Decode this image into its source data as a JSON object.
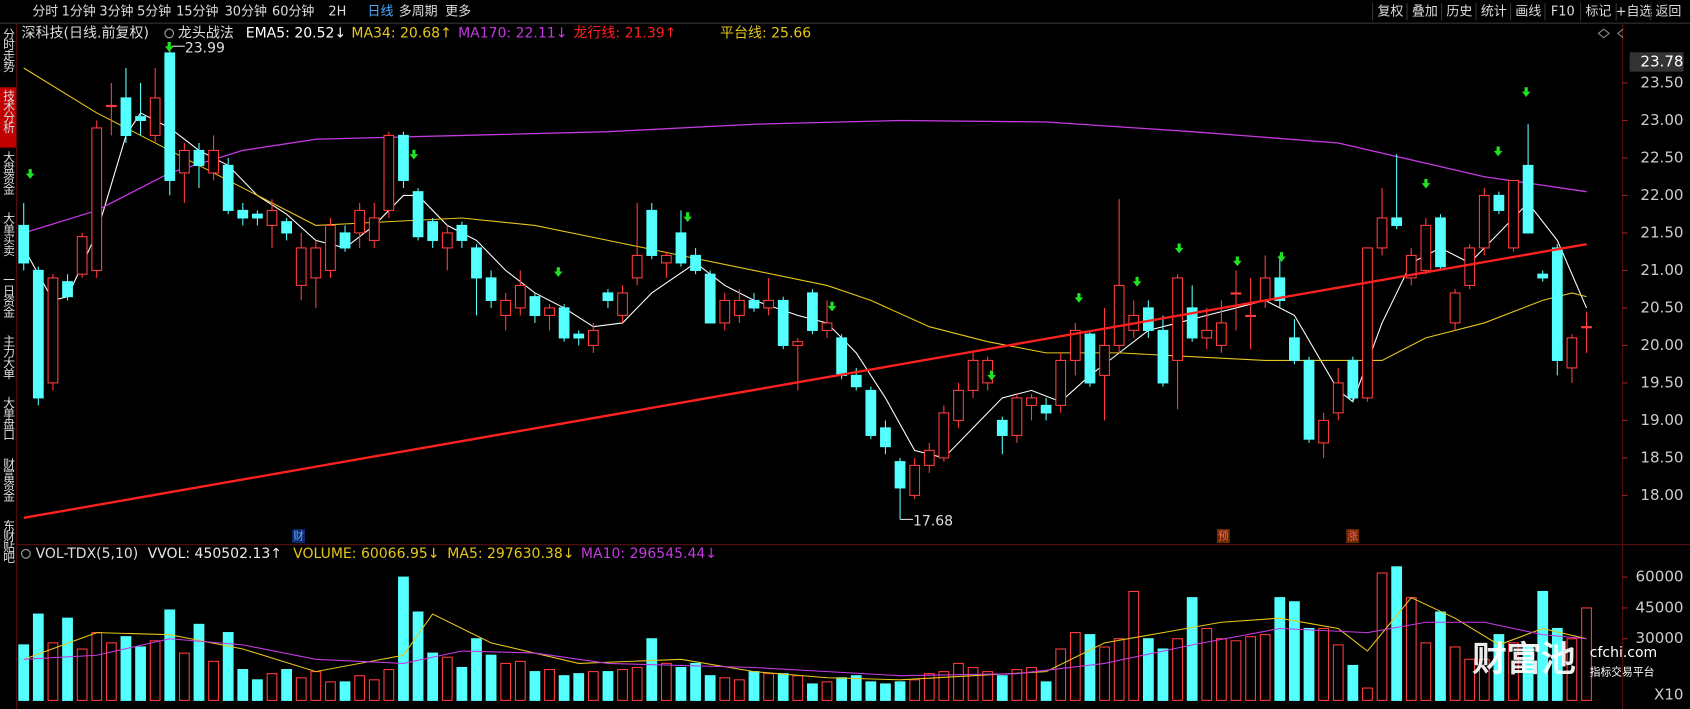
{
  "toolbar": {
    "left": [
      {
        "label": "分时"
      },
      {
        "label": "1分钟"
      },
      {
        "label": "3分钟"
      },
      {
        "label": "5分钟"
      },
      {
        "label": "15分钟"
      },
      {
        "label": "30分钟"
      },
      {
        "label": "60分钟"
      },
      {
        "label": "2H"
      },
      {
        "label": "日线",
        "active": true
      },
      {
        "label": "多周期"
      },
      {
        "label": "更多"
      }
    ],
    "right": [
      {
        "label": "复权"
      },
      {
        "label": "叠加"
      },
      {
        "label": "历史"
      },
      {
        "label": "统计"
      },
      {
        "label": "画线"
      },
      {
        "label": "F10"
      },
      {
        "label": "标记"
      },
      {
        "label": "+自选"
      },
      {
        "label": "返回"
      }
    ]
  },
  "sidebar": [
    {
      "label": "分时走势"
    },
    {
      "label": "技术分析",
      "active": true
    },
    {
      "label": "大盘资金"
    },
    {
      "label": "大单买卖"
    },
    {
      "label": "一日资金"
    },
    {
      "label": "主力大单"
    },
    {
      "label": "大单盘口"
    },
    {
      "label": "财富资金"
    },
    {
      "label": "东财贴吧"
    }
  ],
  "watermark": {
    "logo": "财富池",
    "site": "cfchi.com",
    "tagline": "指标交易平台"
  },
  "chart_data": [
    {
      "type": "candlestick",
      "title": "深科技(日线.前复权)",
      "indicator": "龙头战法",
      "up_color": "#ff3c3c",
      "down_color": "#54ffff",
      "ylim": [
        17.35,
        24.29
      ],
      "yticks": [
        {
          "value": 18,
          "label": "18.00"
        },
        {
          "value": 18.5,
          "label": "18.50"
        },
        {
          "value": 19,
          "label": "19.00"
        },
        {
          "value": 19.5,
          "label": "19.50"
        },
        {
          "value": 20,
          "label": "20.00"
        },
        {
          "value": 20.5,
          "label": "20.50"
        },
        {
          "value": 21,
          "label": "21.00"
        },
        {
          "value": 21.5,
          "label": "21.50"
        },
        {
          "value": 22,
          "label": "22.00"
        },
        {
          "value": 22.5,
          "label": "22.50"
        },
        {
          "value": 23,
          "label": "23.00"
        },
        {
          "value": 23.5,
          "label": "23.50"
        }
      ],
      "axis_top_label": {
        "value": 23.78,
        "label": "23.78"
      },
      "high_label": 23.99,
      "low_label": 17.68,
      "event_markers": [
        "财",
        "预",
        "涨"
      ],
      "ohlc": [
        [
          21.6,
          21.9,
          21.0,
          21.1
        ],
        [
          21.0,
          21.05,
          19.2,
          19.3
        ],
        [
          19.5,
          20.95,
          19.4,
          20.9
        ],
        [
          20.85,
          20.95,
          20.6,
          20.65
        ],
        [
          20.95,
          21.5,
          20.9,
          21.45
        ],
        [
          21.0,
          23.0,
          20.9,
          22.9
        ],
        [
          23.2,
          23.5,
          22.8,
          23.2
        ],
        [
          23.3,
          23.7,
          22.7,
          22.8
        ],
        [
          23.05,
          23.5,
          22.8,
          23.0
        ],
        [
          22.8,
          23.7,
          22.7,
          23.3
        ],
        [
          23.9,
          23.99,
          22.0,
          22.2
        ],
        [
          22.3,
          22.7,
          21.9,
          22.6
        ],
        [
          22.6,
          22.7,
          22.1,
          22.4
        ],
        [
          22.3,
          22.8,
          22.2,
          22.6
        ],
        [
          22.4,
          22.5,
          21.75,
          21.8
        ],
        [
          21.8,
          21.9,
          21.6,
          21.7
        ],
        [
          21.75,
          21.8,
          21.6,
          21.7
        ],
        [
          21.6,
          21.95,
          21.3,
          21.8
        ],
        [
          21.65,
          21.7,
          21.4,
          21.5
        ],
        [
          20.8,
          21.5,
          20.6,
          21.3
        ],
        [
          20.9,
          21.4,
          20.5,
          21.3
        ],
        [
          21.0,
          21.7,
          20.9,
          21.6
        ],
        [
          21.5,
          21.6,
          21.25,
          21.3
        ],
        [
          21.5,
          21.9,
          21.3,
          21.8
        ],
        [
          21.4,
          21.9,
          21.3,
          21.7
        ],
        [
          21.8,
          22.85,
          21.7,
          22.8
        ],
        [
          22.8,
          22.85,
          22.1,
          22.2
        ],
        [
          22.05,
          22.1,
          21.4,
          21.45
        ],
        [
          21.65,
          21.7,
          21.3,
          21.4
        ],
        [
          21.3,
          21.6,
          21.0,
          21.5
        ],
        [
          21.6,
          21.65,
          21.3,
          21.4
        ],
        [
          21.3,
          21.35,
          20.4,
          20.9
        ],
        [
          20.9,
          21.0,
          20.5,
          20.6
        ],
        [
          20.4,
          20.7,
          20.2,
          20.6
        ],
        [
          20.5,
          21.0,
          20.4,
          20.8
        ],
        [
          20.65,
          20.7,
          20.3,
          20.4
        ],
        [
          20.4,
          20.55,
          20.2,
          20.5
        ],
        [
          20.5,
          20.55,
          20.05,
          20.1
        ],
        [
          20.15,
          20.2,
          20.0,
          20.1
        ],
        [
          20.0,
          20.3,
          19.9,
          20.2
        ],
        [
          20.7,
          20.75,
          20.5,
          20.6
        ],
        [
          20.4,
          20.8,
          20.3,
          20.7
        ],
        [
          20.9,
          21.9,
          20.8,
          21.2
        ],
        [
          21.8,
          21.9,
          21.15,
          21.2
        ],
        [
          21.1,
          21.25,
          20.9,
          21.2
        ],
        [
          21.5,
          21.8,
          21.05,
          21.1
        ],
        [
          21.2,
          21.3,
          20.95,
          21.0
        ],
        [
          20.95,
          21.0,
          20.3,
          20.3
        ],
        [
          20.3,
          20.7,
          20.2,
          20.6
        ],
        [
          20.4,
          20.75,
          20.3,
          20.6
        ],
        [
          20.6,
          20.7,
          20.45,
          20.5
        ],
        [
          20.5,
          20.9,
          20.4,
          20.6
        ],
        [
          20.6,
          20.65,
          19.95,
          20.0
        ],
        [
          20.0,
          20.1,
          19.4,
          20.05
        ],
        [
          20.7,
          20.75,
          20.15,
          20.2
        ],
        [
          20.2,
          20.6,
          20.1,
          20.3
        ],
        [
          20.1,
          20.15,
          19.55,
          19.6
        ],
        [
          19.6,
          19.7,
          19.4,
          19.45
        ],
        [
          19.4,
          19.45,
          18.75,
          18.8
        ],
        [
          18.9,
          19.0,
          18.55,
          18.65
        ],
        [
          18.45,
          18.5,
          17.68,
          18.1
        ],
        [
          18.0,
          18.5,
          17.95,
          18.4
        ],
        [
          18.4,
          18.7,
          18.3,
          18.6
        ],
        [
          18.5,
          19.2,
          18.45,
          19.1
        ],
        [
          19.0,
          19.5,
          18.9,
          19.4
        ],
        [
          19.4,
          19.9,
          19.3,
          19.8
        ],
        [
          19.5,
          19.85,
          19.4,
          19.8
        ],
        [
          19.0,
          19.05,
          18.55,
          18.8
        ],
        [
          18.8,
          19.35,
          18.7,
          19.3
        ],
        [
          19.2,
          19.35,
          19.0,
          19.3
        ],
        [
          19.2,
          19.3,
          19.0,
          19.1
        ],
        [
          19.2,
          19.9,
          19.1,
          19.8
        ],
        [
          19.8,
          20.3,
          19.6,
          20.2
        ],
        [
          20.15,
          20.2,
          19.45,
          19.5
        ],
        [
          19.6,
          20.5,
          19.0,
          20.0
        ],
        [
          20.0,
          21.95,
          19.9,
          20.8
        ],
        [
          20.2,
          20.6,
          20.1,
          20.4
        ],
        [
          20.5,
          20.6,
          20.1,
          20.2
        ],
        [
          20.2,
          20.4,
          19.45,
          19.5
        ],
        [
          19.8,
          20.95,
          19.15,
          20.9
        ],
        [
          20.5,
          20.8,
          20.05,
          20.1
        ],
        [
          20.1,
          20.5,
          19.95,
          20.2
        ],
        [
          20.0,
          20.6,
          19.9,
          20.3
        ],
        [
          20.7,
          21.0,
          20.2,
          20.7
        ],
        [
          20.4,
          20.9,
          19.95,
          20.4
        ],
        [
          20.6,
          21.2,
          20.5,
          20.9
        ],
        [
          20.9,
          21.2,
          20.5,
          20.6
        ],
        [
          20.1,
          20.35,
          19.75,
          19.8
        ],
        [
          19.8,
          19.85,
          18.7,
          18.75
        ],
        [
          18.7,
          19.1,
          18.5,
          19.0
        ],
        [
          19.1,
          19.7,
          19.0,
          19.5
        ],
        [
          19.8,
          19.85,
          19.25,
          19.3
        ],
        [
          19.3,
          21.3,
          19.25,
          21.3
        ],
        [
          21.3,
          22.1,
          21.2,
          21.7
        ],
        [
          21.7,
          22.55,
          21.55,
          21.6
        ],
        [
          20.9,
          21.3,
          20.8,
          21.2
        ],
        [
          21.0,
          21.7,
          20.95,
          21.6
        ],
        [
          21.7,
          21.75,
          21.0,
          21.05
        ],
        [
          20.3,
          20.75,
          20.2,
          20.7
        ],
        [
          20.8,
          21.35,
          20.75,
          21.3
        ],
        [
          21.3,
          22.1,
          21.2,
          22.0
        ],
        [
          22.0,
          22.05,
          21.75,
          21.8
        ],
        [
          21.3,
          22.2,
          21.25,
          22.2
        ],
        [
          22.4,
          22.95,
          21.5,
          21.5
        ],
        [
          20.95,
          21.0,
          20.85,
          20.9
        ],
        [
          21.3,
          21.35,
          19.6,
          19.8
        ],
        [
          19.7,
          20.15,
          19.5,
          20.1
        ],
        [
          20.25,
          20.45,
          19.9,
          20.25
        ]
      ],
      "lines": [
        {
          "name": "EMA5: 20.52↓",
          "color": "#ffffff",
          "width": 1,
          "x": [
            0,
            2,
            3,
            5,
            7,
            8,
            10,
            12,
            14,
            16,
            18,
            20,
            22,
            24,
            26,
            27,
            29,
            31,
            33,
            35,
            37,
            39,
            41,
            43,
            46,
            48,
            50,
            53,
            55,
            57,
            59,
            61,
            63,
            65,
            67,
            69,
            71,
            73,
            75,
            77,
            79,
            81,
            83,
            85,
            87,
            90,
            91,
            93,
            95,
            97,
            99,
            101,
            103,
            105,
            107
          ],
          "values": [
            21.3,
            20.6,
            20.65,
            21.5,
            22.8,
            23.1,
            22.9,
            22.6,
            22.4,
            22.0,
            21.75,
            21.4,
            21.3,
            21.6,
            22.0,
            22.0,
            21.6,
            21.4,
            21.0,
            20.7,
            20.5,
            20.25,
            20.3,
            20.7,
            21.1,
            20.8,
            20.6,
            20.4,
            20.3,
            19.9,
            19.3,
            18.6,
            18.5,
            18.9,
            19.3,
            19.4,
            19.25,
            19.6,
            19.9,
            20.2,
            20.3,
            20.4,
            20.5,
            20.6,
            20.4,
            19.4,
            19.25,
            20.3,
            21.1,
            21.3,
            21.1,
            21.5,
            21.9,
            21.4,
            20.5
          ]
        },
        {
          "name": "MA34: 20.68↑",
          "color": "#e6c619",
          "width": 1,
          "x": [
            0,
            5,
            10,
            15,
            20,
            25,
            30,
            35,
            40,
            45,
            50,
            55,
            58,
            62,
            66,
            70,
            75,
            80,
            85,
            90,
            93,
            96,
            100,
            104,
            106,
            107
          ],
          "values": [
            23.7,
            23.1,
            22.6,
            22.1,
            21.6,
            21.65,
            21.7,
            21.6,
            21.4,
            21.2,
            21.0,
            20.8,
            20.6,
            20.25,
            20.05,
            19.9,
            19.9,
            19.85,
            19.8,
            19.8,
            19.8,
            20.1,
            20.3,
            20.6,
            20.7,
            20.65
          ]
        },
        {
          "name": "MA170: 22.11↓",
          "color": "#c43ae0",
          "width": 1.2,
          "x": [
            0,
            5,
            10,
            15,
            20,
            30,
            40,
            50,
            60,
            70,
            80,
            90,
            100,
            107
          ],
          "values": [
            21.5,
            21.8,
            22.3,
            22.6,
            22.75,
            22.8,
            22.85,
            22.95,
            23.0,
            22.98,
            22.85,
            22.7,
            22.25,
            22.05
          ]
        },
        {
          "name": "龙行线: 21.39↑",
          "color": "#ff2020",
          "width": 2.2,
          "x": [
            0,
            107
          ],
          "values": [
            17.7,
            21.35
          ]
        }
      ],
      "legend_extra": {
        "name": "平台线: 25.66",
        "color": "#e6c619"
      }
    },
    {
      "type": "bar",
      "title": "VOL-TDX(5,10)",
      "ylim": [
        0,
        75000
      ],
      "yticks": [
        30000,
        45000,
        60000
      ],
      "unit_label": "X10",
      "legend": [
        {
          "name": "VVOL: 450502.13↑",
          "color": "#e8e8e8"
        },
        {
          "name": "VOLUME: 60066.95↓",
          "color": "#e6c619"
        }
      ],
      "values": [
        27000,
        42000,
        28000,
        40000,
        25000,
        33000,
        28000,
        31000,
        26000,
        29000,
        44000,
        23000,
        37000,
        19000,
        33000,
        15000,
        10000,
        13000,
        15000,
        11000,
        14000,
        9000,
        9000,
        12000,
        10000,
        15000,
        60000,
        43000,
        23000,
        21000,
        16000,
        30000,
        22000,
        18000,
        19000,
        14000,
        15000,
        12000,
        13000,
        14000,
        14000,
        15000,
        16000,
        30000,
        18000,
        16000,
        18000,
        12000,
        11000,
        10000,
        14000,
        13000,
        13000,
        12000,
        8000,
        9000,
        11000,
        12000,
        9000,
        8000,
        9000,
        10000,
        13000,
        14000,
        18000,
        16000,
        14000,
        12000,
        15000,
        16000,
        9000,
        25000,
        33000,
        32000,
        26000,
        30000,
        53000,
        30000,
        25000,
        30000,
        50000,
        35000,
        30000,
        29000,
        31000,
        32000,
        50000,
        48000,
        35000,
        35000,
        27000,
        17000,
        6000,
        62000,
        65000,
        50000,
        28000,
        43000,
        26000,
        20000,
        20000,
        32000,
        28000,
        27000,
        53000,
        35000,
        30000,
        45000
      ],
      "lines": [
        {
          "name": "MA5: 297630.38↓",
          "color": "#e6c619",
          "x": [
            0,
            5,
            10,
            15,
            20,
            26,
            28,
            32,
            38,
            45,
            50,
            55,
            60,
            65,
            70,
            74,
            78,
            82,
            86,
            90,
            92,
            95,
            98,
            101,
            104,
            107
          ],
          "values": [
            20000,
            33000,
            32000,
            25000,
            14000,
            22000,
            42000,
            28000,
            18000,
            20000,
            14000,
            11000,
            10000,
            12000,
            14000,
            28000,
            33000,
            38000,
            40000,
            35000,
            24000,
            50000,
            40000,
            27000,
            35000,
            30000
          ]
        },
        {
          "name": "MA10: 296545.44↓",
          "color": "#c43ae0",
          "x": [
            0,
            5,
            10,
            15,
            20,
            26,
            30,
            35,
            40,
            50,
            60,
            68,
            74,
            80,
            86,
            92,
            96,
            100,
            104,
            107
          ],
          "values": [
            20000,
            22000,
            30000,
            27000,
            20000,
            18000,
            24000,
            23000,
            18000,
            16000,
            12000,
            13000,
            18000,
            27000,
            35000,
            33000,
            38000,
            38000,
            32000,
            30000
          ]
        }
      ]
    }
  ]
}
